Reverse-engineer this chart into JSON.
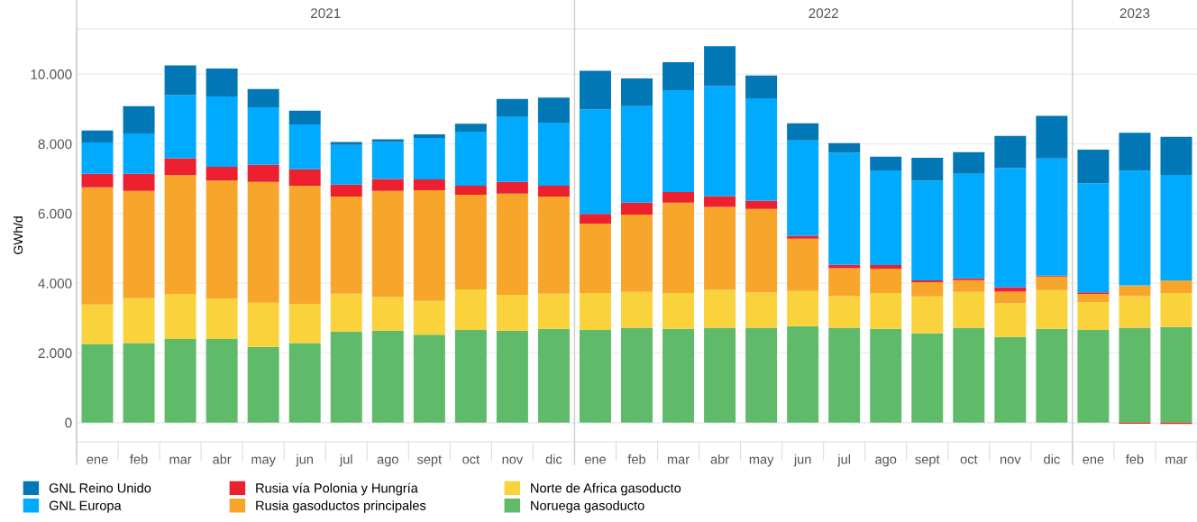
{
  "chart_data": {
    "type": "bar",
    "stacked": true,
    "ylabel": "GWh/d",
    "categories": [
      "ene",
      "feb",
      "mar",
      "abr",
      "may",
      "jun",
      "jul",
      "ago",
      "sept",
      "oct",
      "nov",
      "dic",
      "ene",
      "feb",
      "mar",
      "abr",
      "may",
      "jun",
      "jul",
      "ago",
      "sept",
      "oct",
      "nov",
      "dic",
      "ene",
      "feb",
      "mar"
    ],
    "annotations": [
      "2021",
      "2022",
      "2023"
    ],
    "ylim": [
      -550,
      11300
    ],
    "yticks": [
      {
        "value": 0,
        "label": "0"
      },
      {
        "value": 2000,
        "label": "2.000"
      },
      {
        "value": 4000,
        "label": "4.000"
      },
      {
        "value": 6000,
        "label": "6.000"
      },
      {
        "value": 8000,
        "label": "8.000"
      },
      {
        "value": 10000,
        "label": "10.000"
      }
    ],
    "grid": "y",
    "legend": "bottom",
    "ref_lines": [
      {
        "axis": "y",
        "value": 0,
        "color": "#cccccc",
        "line_style": "dashed"
      }
    ],
    "series": [
      {
        "name": "Noruega gasoducto",
        "color": "#5fba6a",
        "values": [
          2260,
          2280,
          2400,
          2400,
          2170,
          2280,
          2610,
          2640,
          2520,
          2660,
          2640,
          2690,
          2660,
          2720,
          2690,
          2720,
          2720,
          2770,
          2720,
          2690,
          2560,
          2720,
          2460,
          2690,
          2660,
          2720,
          2740
        ]
      },
      {
        "name": "Norte de Africa gasoducto",
        "color": "#f9d23c",
        "values": [
          1130,
          1290,
          1290,
          1160,
          1270,
          1130,
          1090,
          960,
          970,
          1160,
          1030,
          1010,
          1060,
          1030,
          1030,
          1090,
          1010,
          1010,
          910,
          1030,
          1060,
          1030,
          960,
          1110,
          800,
          910,
          980
        ]
      },
      {
        "name": "Rusia gasoductos principales",
        "color": "#f8a62b",
        "values": [
          3360,
          3080,
          3410,
          3390,
          3470,
          3390,
          2790,
          3050,
          3180,
          2720,
          2900,
          2790,
          1990,
          2220,
          2590,
          2380,
          2400,
          1500,
          800,
          700,
          410,
          340,
          340,
          390,
          230,
          310,
          360
        ]
      },
      {
        "name": "Rusia vía Polonia y Hungría",
        "color": "#ec202e",
        "values": [
          390,
          490,
          490,
          390,
          490,
          470,
          340,
          340,
          310,
          260,
          340,
          310,
          280,
          340,
          310,
          310,
          240,
          80,
          100,
          100,
          50,
          50,
          130,
          30,
          50,
          -30,
          -40
        ]
      },
      {
        "name": "GNL Europa",
        "color": "#00aaff",
        "values": [
          900,
          1160,
          1810,
          2020,
          1650,
          1290,
          1140,
          1060,
          1190,
          1550,
          1860,
          1810,
          3000,
          2770,
          2920,
          3160,
          2940,
          2740,
          3210,
          2720,
          2870,
          3000,
          3410,
          3360,
          3130,
          3290,
          3030
        ]
      },
      {
        "name": "GNL Reino Unido",
        "color": "#0277b5",
        "values": [
          340,
          780,
          850,
          800,
          520,
          390,
          80,
          80,
          100,
          230,
          520,
          720,
          1110,
          800,
          800,
          1140,
          650,
          490,
          280,
          390,
          650,
          620,
          930,
          1220,
          960,
          1090,
          1090
        ]
      }
    ]
  }
}
